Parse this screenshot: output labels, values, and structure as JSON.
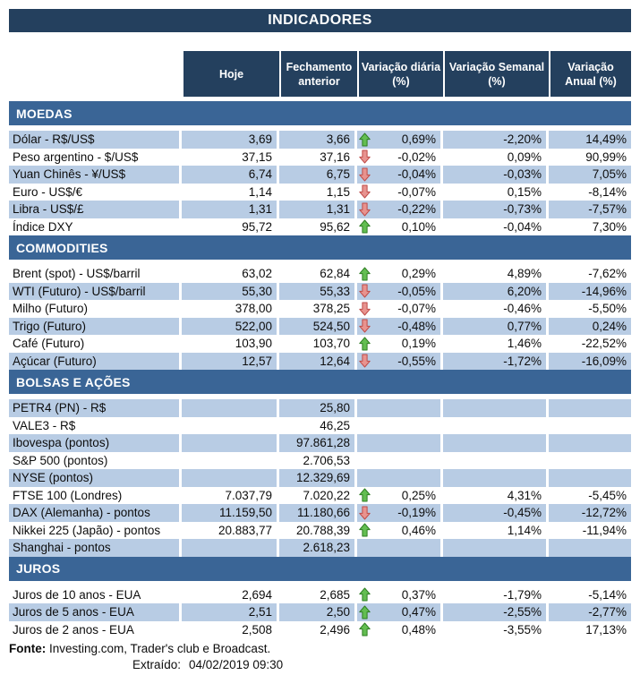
{
  "title": "INDICADORES",
  "colors": {
    "header_bg": "#24405E",
    "section_bg": "#3A6596",
    "row_shade": "#B8CCE4",
    "up_arrow_fill": "#63BE51",
    "up_arrow_border": "#2E7D22",
    "down_arrow_fill": "#E8938F",
    "down_arrow_border": "#BE4B48"
  },
  "chart_data": {
    "type": "table",
    "title": "INDICADORES",
    "columns": [
      {
        "label": "",
        "line1": "",
        "line2": ""
      },
      {
        "label": "Hoje",
        "line1": "Hoje",
        "line2": ""
      },
      {
        "label": "Fechamento anterior",
        "line1": "Fechamento",
        "line2": "anterior"
      },
      {
        "label": "Variação diária (%)",
        "line1": "Variação diária",
        "line2": "(%)"
      },
      {
        "label": "Variação Semanal (%)",
        "line1": "Variação Semanal",
        "line2": "(%)"
      },
      {
        "label": "Variação Anual (%)",
        "line1": "Variação",
        "line2": "Anual (%)"
      }
    ],
    "sections": [
      {
        "name": "MOEDAS",
        "rows": [
          {
            "label": "Dólar - R$/US$",
            "hoje": "3,69",
            "fechamento": "3,66",
            "arrow": "up",
            "variacao_diaria": "0,69%",
            "variacao_semanal": "-2,20%",
            "variacao_anual": "14,49%"
          },
          {
            "label": "Peso argentino - $/US$",
            "hoje": "37,15",
            "fechamento": "37,16",
            "arrow": "down",
            "variacao_diaria": "-0,02%",
            "variacao_semanal": "0,09%",
            "variacao_anual": "90,99%"
          },
          {
            "label": "Yuan Chinês - ¥/US$",
            "hoje": "6,74",
            "fechamento": "6,75",
            "arrow": "down",
            "variacao_diaria": "-0,04%",
            "variacao_semanal": "-0,03%",
            "variacao_anual": "7,05%"
          },
          {
            "label": "Euro - US$/€",
            "hoje": "1,14",
            "fechamento": "1,15",
            "arrow": "down",
            "variacao_diaria": "-0,07%",
            "variacao_semanal": "0,15%",
            "variacao_anual": "-8,14%"
          },
          {
            "label": "Libra - US$/£",
            "hoje": "1,31",
            "fechamento": "1,31",
            "arrow": "down",
            "variacao_diaria": "-0,22%",
            "variacao_semanal": "-0,73%",
            "variacao_anual": "-7,57%"
          },
          {
            "label": "Índice DXY",
            "hoje": "95,72",
            "fechamento": "95,62",
            "arrow": "up",
            "variacao_diaria": "0,10%",
            "variacao_semanal": "-0,04%",
            "variacao_anual": "7,30%"
          }
        ]
      },
      {
        "name": "COMMODITIES",
        "rows": [
          {
            "label": "Brent (spot) - US$/barril",
            "hoje": "63,02",
            "fechamento": "62,84",
            "arrow": "up",
            "variacao_diaria": "0,29%",
            "variacao_semanal": "4,89%",
            "variacao_anual": "-7,62%"
          },
          {
            "label": "WTI (Futuro) - US$/barril",
            "hoje": "55,30",
            "fechamento": "55,33",
            "arrow": "down",
            "variacao_diaria": "-0,05%",
            "variacao_semanal": "6,20%",
            "variacao_anual": "-14,96%"
          },
          {
            "label": "Milho (Futuro)",
            "hoje": "378,00",
            "fechamento": "378,25",
            "arrow": "down",
            "variacao_diaria": "-0,07%",
            "variacao_semanal": "-0,46%",
            "variacao_anual": "-5,50%"
          },
          {
            "label": "Trigo (Futuro)",
            "hoje": "522,00",
            "fechamento": "524,50",
            "arrow": "down",
            "variacao_diaria": "-0,48%",
            "variacao_semanal": "0,77%",
            "variacao_anual": "0,24%"
          },
          {
            "label": "Café (Futuro)",
            "hoje": "103,90",
            "fechamento": "103,70",
            "arrow": "up",
            "variacao_diaria": "0,19%",
            "variacao_semanal": "1,46%",
            "variacao_anual": "-22,52%"
          },
          {
            "label": "Açúcar (Futuro)",
            "hoje": "12,57",
            "fechamento": "12,64",
            "arrow": "down",
            "variacao_diaria": "-0,55%",
            "variacao_semanal": "-1,72%",
            "variacao_anual": "-16,09%"
          }
        ]
      },
      {
        "name": "BOLSAS E AÇÕES",
        "rows": [
          {
            "label": "PETR4 (PN) - R$",
            "hoje": null,
            "fechamento": "25,80",
            "arrow": null,
            "variacao_diaria": null,
            "variacao_semanal": null,
            "variacao_anual": null
          },
          {
            "label": "VALE3 - R$",
            "hoje": null,
            "fechamento": "46,25",
            "arrow": null,
            "variacao_diaria": null,
            "variacao_semanal": null,
            "variacao_anual": null
          },
          {
            "label": "Ibovespa (pontos)",
            "hoje": null,
            "fechamento": "97.861,28",
            "arrow": null,
            "variacao_diaria": null,
            "variacao_semanal": null,
            "variacao_anual": null
          },
          {
            "label": "S&P 500 (pontos)",
            "hoje": null,
            "fechamento": "2.706,53",
            "arrow": null,
            "variacao_diaria": null,
            "variacao_semanal": null,
            "variacao_anual": null
          },
          {
            "label": "NYSE (pontos)",
            "hoje": null,
            "fechamento": "12.329,69",
            "arrow": null,
            "variacao_diaria": null,
            "variacao_semanal": null,
            "variacao_anual": null
          },
          {
            "label": "FTSE 100 (Londres)",
            "hoje": "7.037,79",
            "fechamento": "7.020,22",
            "arrow": "up",
            "variacao_diaria": "0,25%",
            "variacao_semanal": "4,31%",
            "variacao_anual": "-5,45%"
          },
          {
            "label": "DAX (Alemanha) - pontos",
            "hoje": "11.159,50",
            "fechamento": "11.180,66",
            "arrow": "down",
            "variacao_diaria": "-0,19%",
            "variacao_semanal": "-0,45%",
            "variacao_anual": "-12,72%"
          },
          {
            "label": "Nikkei 225 (Japão) - pontos",
            "hoje": "20.883,77",
            "fechamento": "20.788,39",
            "arrow": "up",
            "variacao_diaria": "0,46%",
            "variacao_semanal": "1,14%",
            "variacao_anual": "-11,94%"
          },
          {
            "label": "Shanghai - pontos",
            "hoje": null,
            "fechamento": "2.618,23",
            "arrow": null,
            "variacao_diaria": null,
            "variacao_semanal": null,
            "variacao_anual": null
          }
        ]
      },
      {
        "name": "JUROS",
        "rows": [
          {
            "label": "Juros de 10 anos - EUA",
            "hoje": "2,694",
            "fechamento": "2,685",
            "arrow": "up",
            "variacao_diaria": "0,37%",
            "variacao_semanal": "-1,79%",
            "variacao_anual": "-5,14%"
          },
          {
            "label": "Juros de 5 anos - EUA",
            "hoje": "2,51",
            "fechamento": "2,50",
            "arrow": "up",
            "variacao_diaria": "0,47%",
            "variacao_semanal": "-2,55%",
            "variacao_anual": "-2,77%"
          },
          {
            "label": "Juros de 2 anos - EUA",
            "hoje": "2,508",
            "fechamento": "2,496",
            "arrow": "up",
            "variacao_diaria": "0,48%",
            "variacao_semanal": "-3,55%",
            "variacao_anual": "17,13%"
          }
        ]
      }
    ]
  },
  "footer": {
    "fonte_label": "Fonte:",
    "fonte_text": " Investing.com, Trader's club e Broadcast.",
    "extraido_label": "Extraído:",
    "extraido_value": "04/02/2019 09:30"
  }
}
